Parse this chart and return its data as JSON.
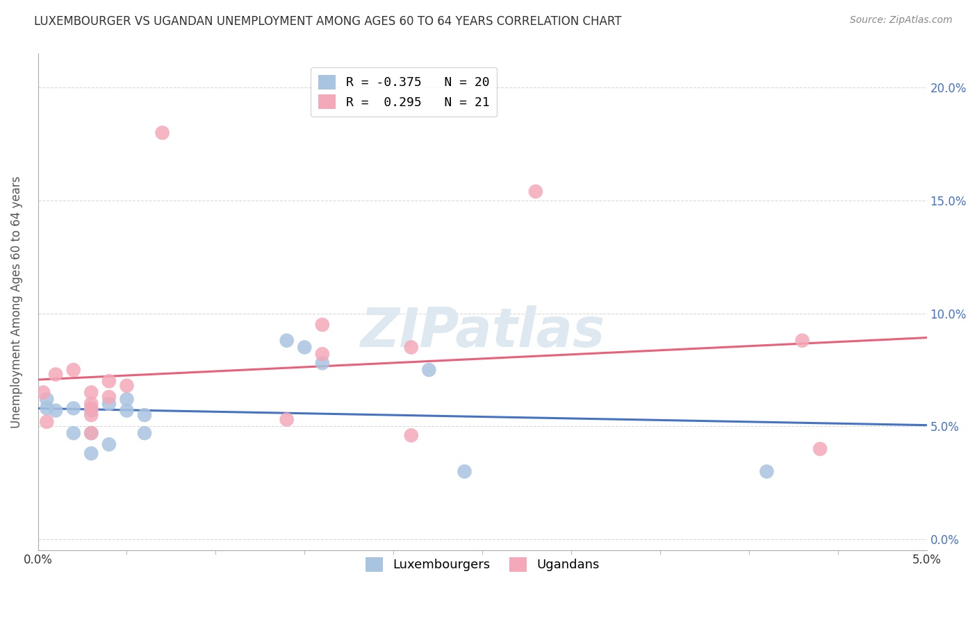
{
  "title": "LUXEMBOURGER VS UGANDAN UNEMPLOYMENT AMONG AGES 60 TO 64 YEARS CORRELATION CHART",
  "source": "Source: ZipAtlas.com",
  "ylabel": "Unemployment Among Ages 60 to 64 years",
  "xlim": [
    0.0,
    0.05
  ],
  "ylim": [
    -0.005,
    0.215
  ],
  "xtick_positions": [
    0.0,
    0.05
  ],
  "xtick_labels": [
    "0.0%",
    "5.0%"
  ],
  "ytick_positions": [
    0.0,
    0.05,
    0.1,
    0.15,
    0.2
  ],
  "ytick_labels": [
    "0.0%",
    "5.0%",
    "10.0%",
    "15.0%",
    "20.0%"
  ],
  "lux_R": -0.375,
  "lux_N": 20,
  "uga_R": 0.295,
  "uga_N": 21,
  "lux_color": "#a8c4e0",
  "uga_color": "#f4a8b8",
  "lux_line_color": "#4472c4",
  "uga_line_color": "#e8607a",
  "background_color": "#ffffff",
  "grid_color": "#d8d8d8",
  "lux_x": [
    0.0005,
    0.0005,
    0.001,
    0.002,
    0.002,
    0.003,
    0.003,
    0.003,
    0.004,
    0.004,
    0.005,
    0.005,
    0.006,
    0.006,
    0.014,
    0.015,
    0.016,
    0.022,
    0.024,
    0.041
  ],
  "lux_y": [
    0.062,
    0.058,
    0.057,
    0.058,
    0.047,
    0.057,
    0.047,
    0.038,
    0.06,
    0.042,
    0.062,
    0.057,
    0.055,
    0.047,
    0.088,
    0.085,
    0.078,
    0.075,
    0.03,
    0.03
  ],
  "uga_x": [
    0.0003,
    0.0005,
    0.001,
    0.002,
    0.003,
    0.003,
    0.003,
    0.003,
    0.003,
    0.004,
    0.004,
    0.005,
    0.007,
    0.014,
    0.016,
    0.016,
    0.021,
    0.021,
    0.028,
    0.043,
    0.044
  ],
  "uga_y": [
    0.065,
    0.052,
    0.073,
    0.075,
    0.065,
    0.06,
    0.058,
    0.055,
    0.047,
    0.07,
    0.063,
    0.068,
    0.18,
    0.053,
    0.082,
    0.095,
    0.046,
    0.085,
    0.154,
    0.088,
    0.04
  ]
}
